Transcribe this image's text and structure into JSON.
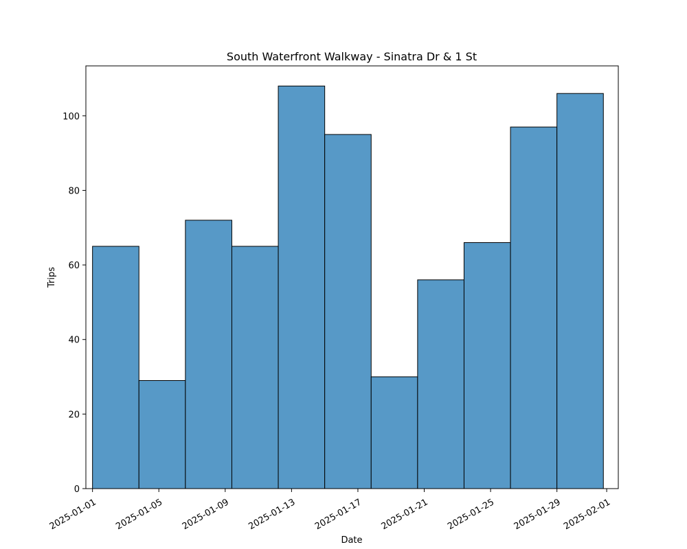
{
  "chart_data": {
    "type": "bar",
    "title": "South Waterfront Walkway - Sinatra Dr & 1 St",
    "xlabel": "Date",
    "ylabel": "Trips",
    "bins": [
      {
        "start": "2025-01-01",
        "end": "2025-01-03T19:12",
        "value": 65
      },
      {
        "start": "2025-01-03T19:12",
        "end": "2025-01-06T14:24",
        "value": 29
      },
      {
        "start": "2025-01-06T14:24",
        "end": "2025-01-09T09:36",
        "value": 72
      },
      {
        "start": "2025-01-09T09:36",
        "end": "2025-01-12T04:48",
        "value": 65
      },
      {
        "start": "2025-01-12T04:48",
        "end": "2025-01-15",
        "value": 108
      },
      {
        "start": "2025-01-15",
        "end": "2025-01-17T19:12",
        "value": 95
      },
      {
        "start": "2025-01-17T19:12",
        "end": "2025-01-20T14:24",
        "value": 30
      },
      {
        "start": "2025-01-20T14:24",
        "end": "2025-01-23T09:36",
        "value": 56
      },
      {
        "start": "2025-01-23T09:36",
        "end": "2025-01-26T04:48",
        "value": 66
      },
      {
        "start": "2025-01-26T04:48",
        "end": "2025-01-29",
        "value": 97
      },
      {
        "start": "2025-01-29",
        "end": "2025-01-31T19:12",
        "value": 106
      }
    ],
    "xlim": [
      "2024-12-31T14:24",
      "2025-02-01T16:48"
    ],
    "ylim": [
      0,
      113.4
    ],
    "xticks": [
      "2025-01-01",
      "2025-01-05",
      "2025-01-09",
      "2025-01-13",
      "2025-01-17",
      "2025-01-21",
      "2025-01-25",
      "2025-01-29",
      "2025-02-01"
    ],
    "yticks": [
      0,
      20,
      40,
      60,
      80,
      100
    ],
    "grid": false,
    "bar_color": "#5799c7",
    "edge_color": "#000000"
  }
}
